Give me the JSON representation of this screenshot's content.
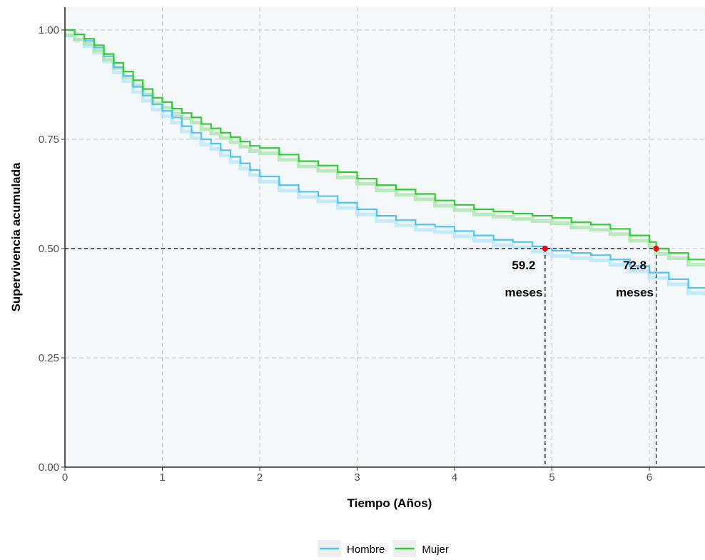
{
  "chart_data": {
    "type": "line",
    "title": "",
    "xlabel": "Tiempo (Años)",
    "ylabel": "Supervivencia acumulada",
    "xlim": [
      0,
      6.58
    ],
    "ylim": [
      0,
      1.05
    ],
    "x_ticks": [
      0,
      1,
      2,
      3,
      4,
      5,
      6
    ],
    "x_tick_labels": [
      "0",
      "1",
      "2",
      "3",
      "4",
      "5",
      "6"
    ],
    "y_ticks": [
      0,
      0.25,
      0.5,
      0.75,
      1.0
    ],
    "y_tick_labels": [
      "0.00",
      "0.25",
      "0.50",
      "0.75",
      "1.00"
    ],
    "grid": true,
    "legend_position": "bottom",
    "colors": {
      "panel_bg": "#f5f8fb",
      "grid": "#c8c8c8",
      "median_point": "#ff0000"
    },
    "series": [
      {
        "name": "Hombre",
        "color": "#4fc3f7",
        "band_color": "#b3e5fc",
        "x": [
          0,
          0.1,
          0.2,
          0.3,
          0.4,
          0.5,
          0.6,
          0.7,
          0.8,
          0.9,
          1.0,
          1.1,
          1.2,
          1.3,
          1.4,
          1.5,
          1.6,
          1.7,
          1.8,
          1.9,
          2.0,
          2.2,
          2.4,
          2.6,
          2.8,
          3.0,
          3.2,
          3.4,
          3.6,
          3.8,
          4.0,
          4.2,
          4.4,
          4.6,
          4.8,
          4.93,
          5.0,
          5.2,
          5.4,
          5.6,
          5.8,
          6.0,
          6.2,
          6.4,
          6.58
        ],
        "y": [
          1.0,
          0.99,
          0.975,
          0.96,
          0.94,
          0.915,
          0.895,
          0.87,
          0.85,
          0.83,
          0.815,
          0.8,
          0.78,
          0.765,
          0.75,
          0.74,
          0.725,
          0.71,
          0.695,
          0.68,
          0.665,
          0.645,
          0.63,
          0.62,
          0.605,
          0.59,
          0.575,
          0.565,
          0.555,
          0.55,
          0.54,
          0.53,
          0.52,
          0.515,
          0.505,
          0.5,
          0.495,
          0.49,
          0.485,
          0.475,
          0.46,
          0.445,
          0.43,
          0.41,
          0.405
        ]
      },
      {
        "name": "Mujer",
        "color": "#33cc33",
        "band_color": "#a5e6a5",
        "x": [
          0,
          0.1,
          0.2,
          0.3,
          0.4,
          0.5,
          0.6,
          0.7,
          0.8,
          0.9,
          1.0,
          1.1,
          1.2,
          1.3,
          1.4,
          1.5,
          1.6,
          1.7,
          1.8,
          1.9,
          2.0,
          2.2,
          2.4,
          2.6,
          2.8,
          3.0,
          3.2,
          3.4,
          3.6,
          3.8,
          4.0,
          4.2,
          4.4,
          4.6,
          4.8,
          5.0,
          5.2,
          5.4,
          5.6,
          5.8,
          6.0,
          6.07,
          6.2,
          6.4,
          6.58
        ],
        "y": [
          1.0,
          0.99,
          0.98,
          0.965,
          0.945,
          0.925,
          0.905,
          0.885,
          0.865,
          0.845,
          0.835,
          0.82,
          0.81,
          0.8,
          0.785,
          0.775,
          0.765,
          0.755,
          0.745,
          0.735,
          0.73,
          0.715,
          0.7,
          0.69,
          0.675,
          0.66,
          0.645,
          0.635,
          0.625,
          0.61,
          0.6,
          0.59,
          0.585,
          0.58,
          0.575,
          0.57,
          0.56,
          0.555,
          0.545,
          0.53,
          0.515,
          0.5,
          0.49,
          0.475,
          0.475
        ]
      }
    ],
    "reference_line_y": 0.5,
    "medians": [
      {
        "series": "Hombre",
        "x": 4.93,
        "y": 0.5,
        "label_line1": "59.2",
        "label_line2": "meses"
      },
      {
        "series": "Mujer",
        "x": 6.07,
        "y": 0.5,
        "label_line1": "72.8",
        "label_line2": "meses"
      }
    ]
  }
}
